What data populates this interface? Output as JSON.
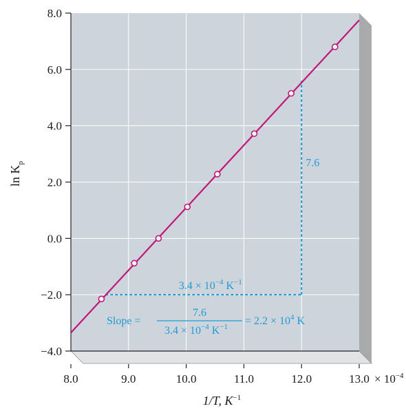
{
  "chart_data": {
    "type": "scatter",
    "title": "",
    "xlabel": "1/T, K",
    "xlabel_exponent": "−1",
    "ylabel": "ln K",
    "ylabel_subscript": "p",
    "xlim": [
      8.0,
      13.0
    ],
    "ylim": [
      -4.0,
      8.0
    ],
    "x_ticks": [
      "8.0",
      "9.0",
      "10.0",
      "11.0",
      "12.0",
      "13.0"
    ],
    "x_scale_label": "× 10",
    "x_scale_exponent": "−4",
    "y_ticks": [
      "−4.0",
      "−2.0",
      "0.0",
      "2.0",
      "4.0",
      "6.0",
      "8.0"
    ],
    "grid": true,
    "points": [
      {
        "x": 8.53,
        "y": -2.15
      },
      {
        "x": 9.1,
        "y": -0.88
      },
      {
        "x": 9.52,
        "y": 0.0
      },
      {
        "x": 10.02,
        "y": 1.12
      },
      {
        "x": 10.54,
        "y": 2.28
      },
      {
        "x": 11.18,
        "y": 3.72
      },
      {
        "x": 11.82,
        "y": 5.15
      },
      {
        "x": 12.58,
        "y": 6.8
      }
    ],
    "fit_line": {
      "x": [
        8.0,
        13.0
      ],
      "y": [
        -3.35,
        7.75
      ]
    },
    "annotations": {
      "vertical_delta": "7.6",
      "horizontal_delta_prefix": "3.4 × 10",
      "horizontal_delta_exponent": "−4",
      "horizontal_delta_unit": " K",
      "horizontal_delta_unit_exponent": "−1",
      "slope_prefix": "Slope =",
      "slope_numerator": "7.6",
      "slope_denominator_prefix": "3.4 × 10",
      "slope_denominator_exponent": "−4",
      "slope_denominator_unit": " K",
      "slope_denominator_unit_exponent": "−1",
      "slope_result_prefix": "= 2.2 × 10",
      "slope_result_exponent": "4",
      "slope_result_unit": " K"
    },
    "triangle": {
      "x1": 8.6,
      "x2": 12.0,
      "y1": -2.0,
      "y2": 5.6
    },
    "colors": {
      "plot_bg": "#cdd4db",
      "side_face": "#a9aaab",
      "bottom_face": "#e2e3e4",
      "grid": "#ffffff",
      "line": "#c2157a",
      "annotation": "#1f9ad6",
      "axis": "#222222"
    }
  }
}
